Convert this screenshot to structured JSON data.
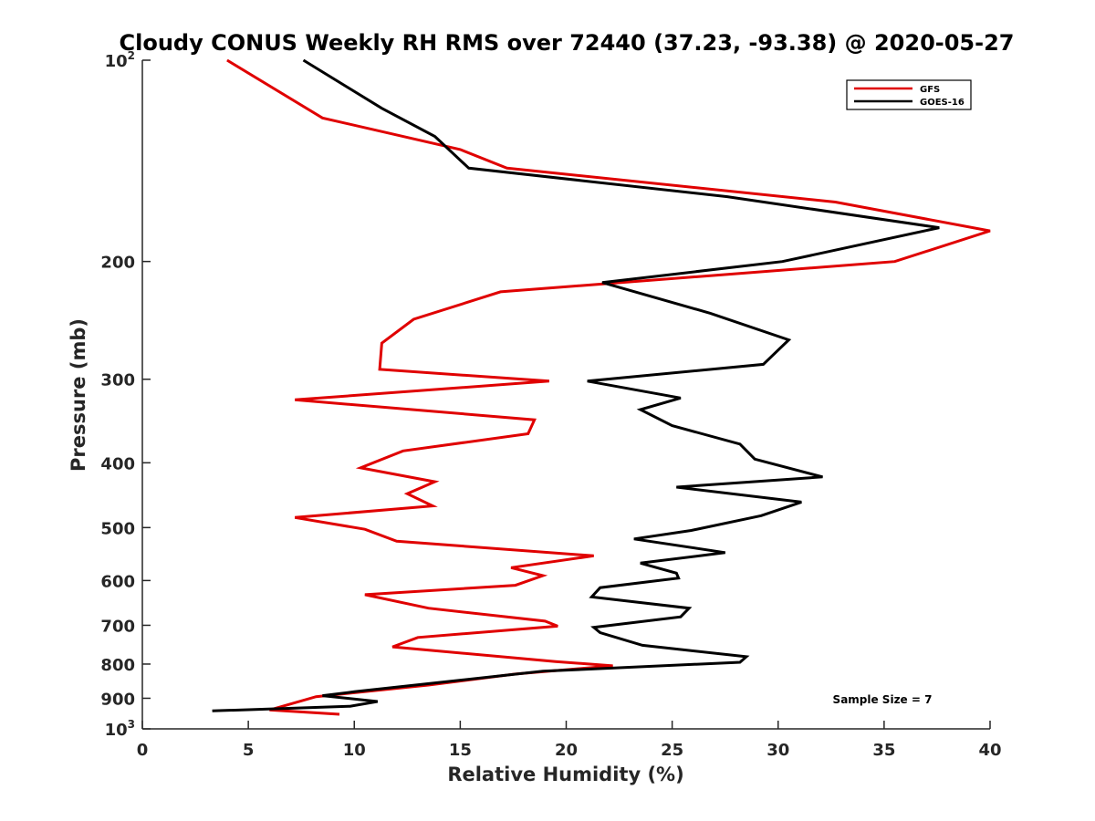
{
  "chart_data": {
    "type": "line",
    "title": "Cloudy CONUS Weekly RH RMS over 72440 (37.23, -93.38) @ 2020-05-27",
    "xlabel": "Relative Humidity (%)",
    "ylabel": "Pressure (mb)",
    "xlim": [
      0,
      40
    ],
    "ylim": [
      100,
      1000
    ],
    "y_scale": "log",
    "y_reversed": true,
    "x_ticks": [
      0,
      5,
      10,
      15,
      20,
      25,
      30,
      35,
      40
    ],
    "x_tick_labels": [
      "0",
      "5",
      "10",
      "15",
      "20",
      "25",
      "30",
      "35",
      "40"
    ],
    "y_ticks": [
      100,
      200,
      300,
      400,
      500,
      600,
      700,
      800,
      900,
      1000
    ],
    "y_tick_labels": [
      "10^2",
      "200",
      "300",
      "400",
      "500",
      "600",
      "700",
      "800",
      "900",
      "10^3"
    ],
    "grid": false,
    "legend_position": "top-right",
    "annotation": "Sample Size = 7",
    "series": [
      {
        "name": "GFS",
        "color": "#e00000",
        "points": [
          [
            4.0,
            100
          ],
          [
            8.5,
            122
          ],
          [
            15.0,
            136
          ],
          [
            17.2,
            145
          ],
          [
            32.7,
            163
          ],
          [
            40.0,
            180
          ],
          [
            35.5,
            200
          ],
          [
            16.9,
            222
          ],
          [
            12.8,
            244
          ],
          [
            11.3,
            265
          ],
          [
            11.2,
            290
          ],
          [
            19.2,
            302
          ],
          [
            7.2,
            322
          ],
          [
            18.5,
            345
          ],
          [
            18.2,
            362
          ],
          [
            12.3,
            384
          ],
          [
            10.3,
            407
          ],
          [
            13.8,
            427
          ],
          [
            12.5,
            445
          ],
          [
            13.7,
            464
          ],
          [
            7.2,
            483
          ],
          [
            10.5,
            503
          ],
          [
            12.0,
            524
          ],
          [
            21.3,
            551
          ],
          [
            17.4,
            574
          ],
          [
            18.9,
            590
          ],
          [
            17.6,
            610
          ],
          [
            10.5,
            630
          ],
          [
            13.5,
            660
          ],
          [
            19.0,
            690
          ],
          [
            19.6,
            702
          ],
          [
            13.0,
            730
          ],
          [
            11.8,
            754
          ],
          [
            19.5,
            793
          ],
          [
            22.2,
            805
          ],
          [
            17.6,
            828
          ],
          [
            13.5,
            860
          ],
          [
            8.2,
            895
          ],
          [
            6.0,
            937
          ],
          [
            9.3,
            951
          ]
        ]
      },
      {
        "name": "GOES-16",
        "color": "#000000",
        "points": [
          [
            7.6,
            100
          ],
          [
            11.3,
            118
          ],
          [
            13.8,
            130
          ],
          [
            15.4,
            145
          ],
          [
            27.6,
            160
          ],
          [
            37.6,
            178
          ],
          [
            30.2,
            200
          ],
          [
            21.7,
            215
          ],
          [
            26.8,
            239
          ],
          [
            30.5,
            262
          ],
          [
            29.3,
            285
          ],
          [
            21.0,
            302
          ],
          [
            25.4,
            320
          ],
          [
            23.5,
            333
          ],
          [
            25.0,
            352
          ],
          [
            28.2,
            375
          ],
          [
            28.9,
            395
          ],
          [
            32.1,
            420
          ],
          [
            25.2,
            435
          ],
          [
            31.1,
            458
          ],
          [
            29.2,
            480
          ],
          [
            25.9,
            505
          ],
          [
            23.2,
            520
          ],
          [
            27.5,
            545
          ],
          [
            23.5,
            565
          ],
          [
            25.2,
            585
          ],
          [
            25.3,
            595
          ],
          [
            21.6,
            615
          ],
          [
            21.2,
            635
          ],
          [
            25.8,
            660
          ],
          [
            25.4,
            680
          ],
          [
            21.3,
            705
          ],
          [
            21.6,
            718
          ],
          [
            23.6,
            750
          ],
          [
            28.5,
            780
          ],
          [
            28.2,
            795
          ],
          [
            18.9,
            820
          ],
          [
            10.0,
            880
          ],
          [
            8.5,
            892
          ],
          [
            11.1,
            910
          ],
          [
            9.8,
            925
          ],
          [
            3.3,
            940
          ]
        ]
      }
    ]
  }
}
